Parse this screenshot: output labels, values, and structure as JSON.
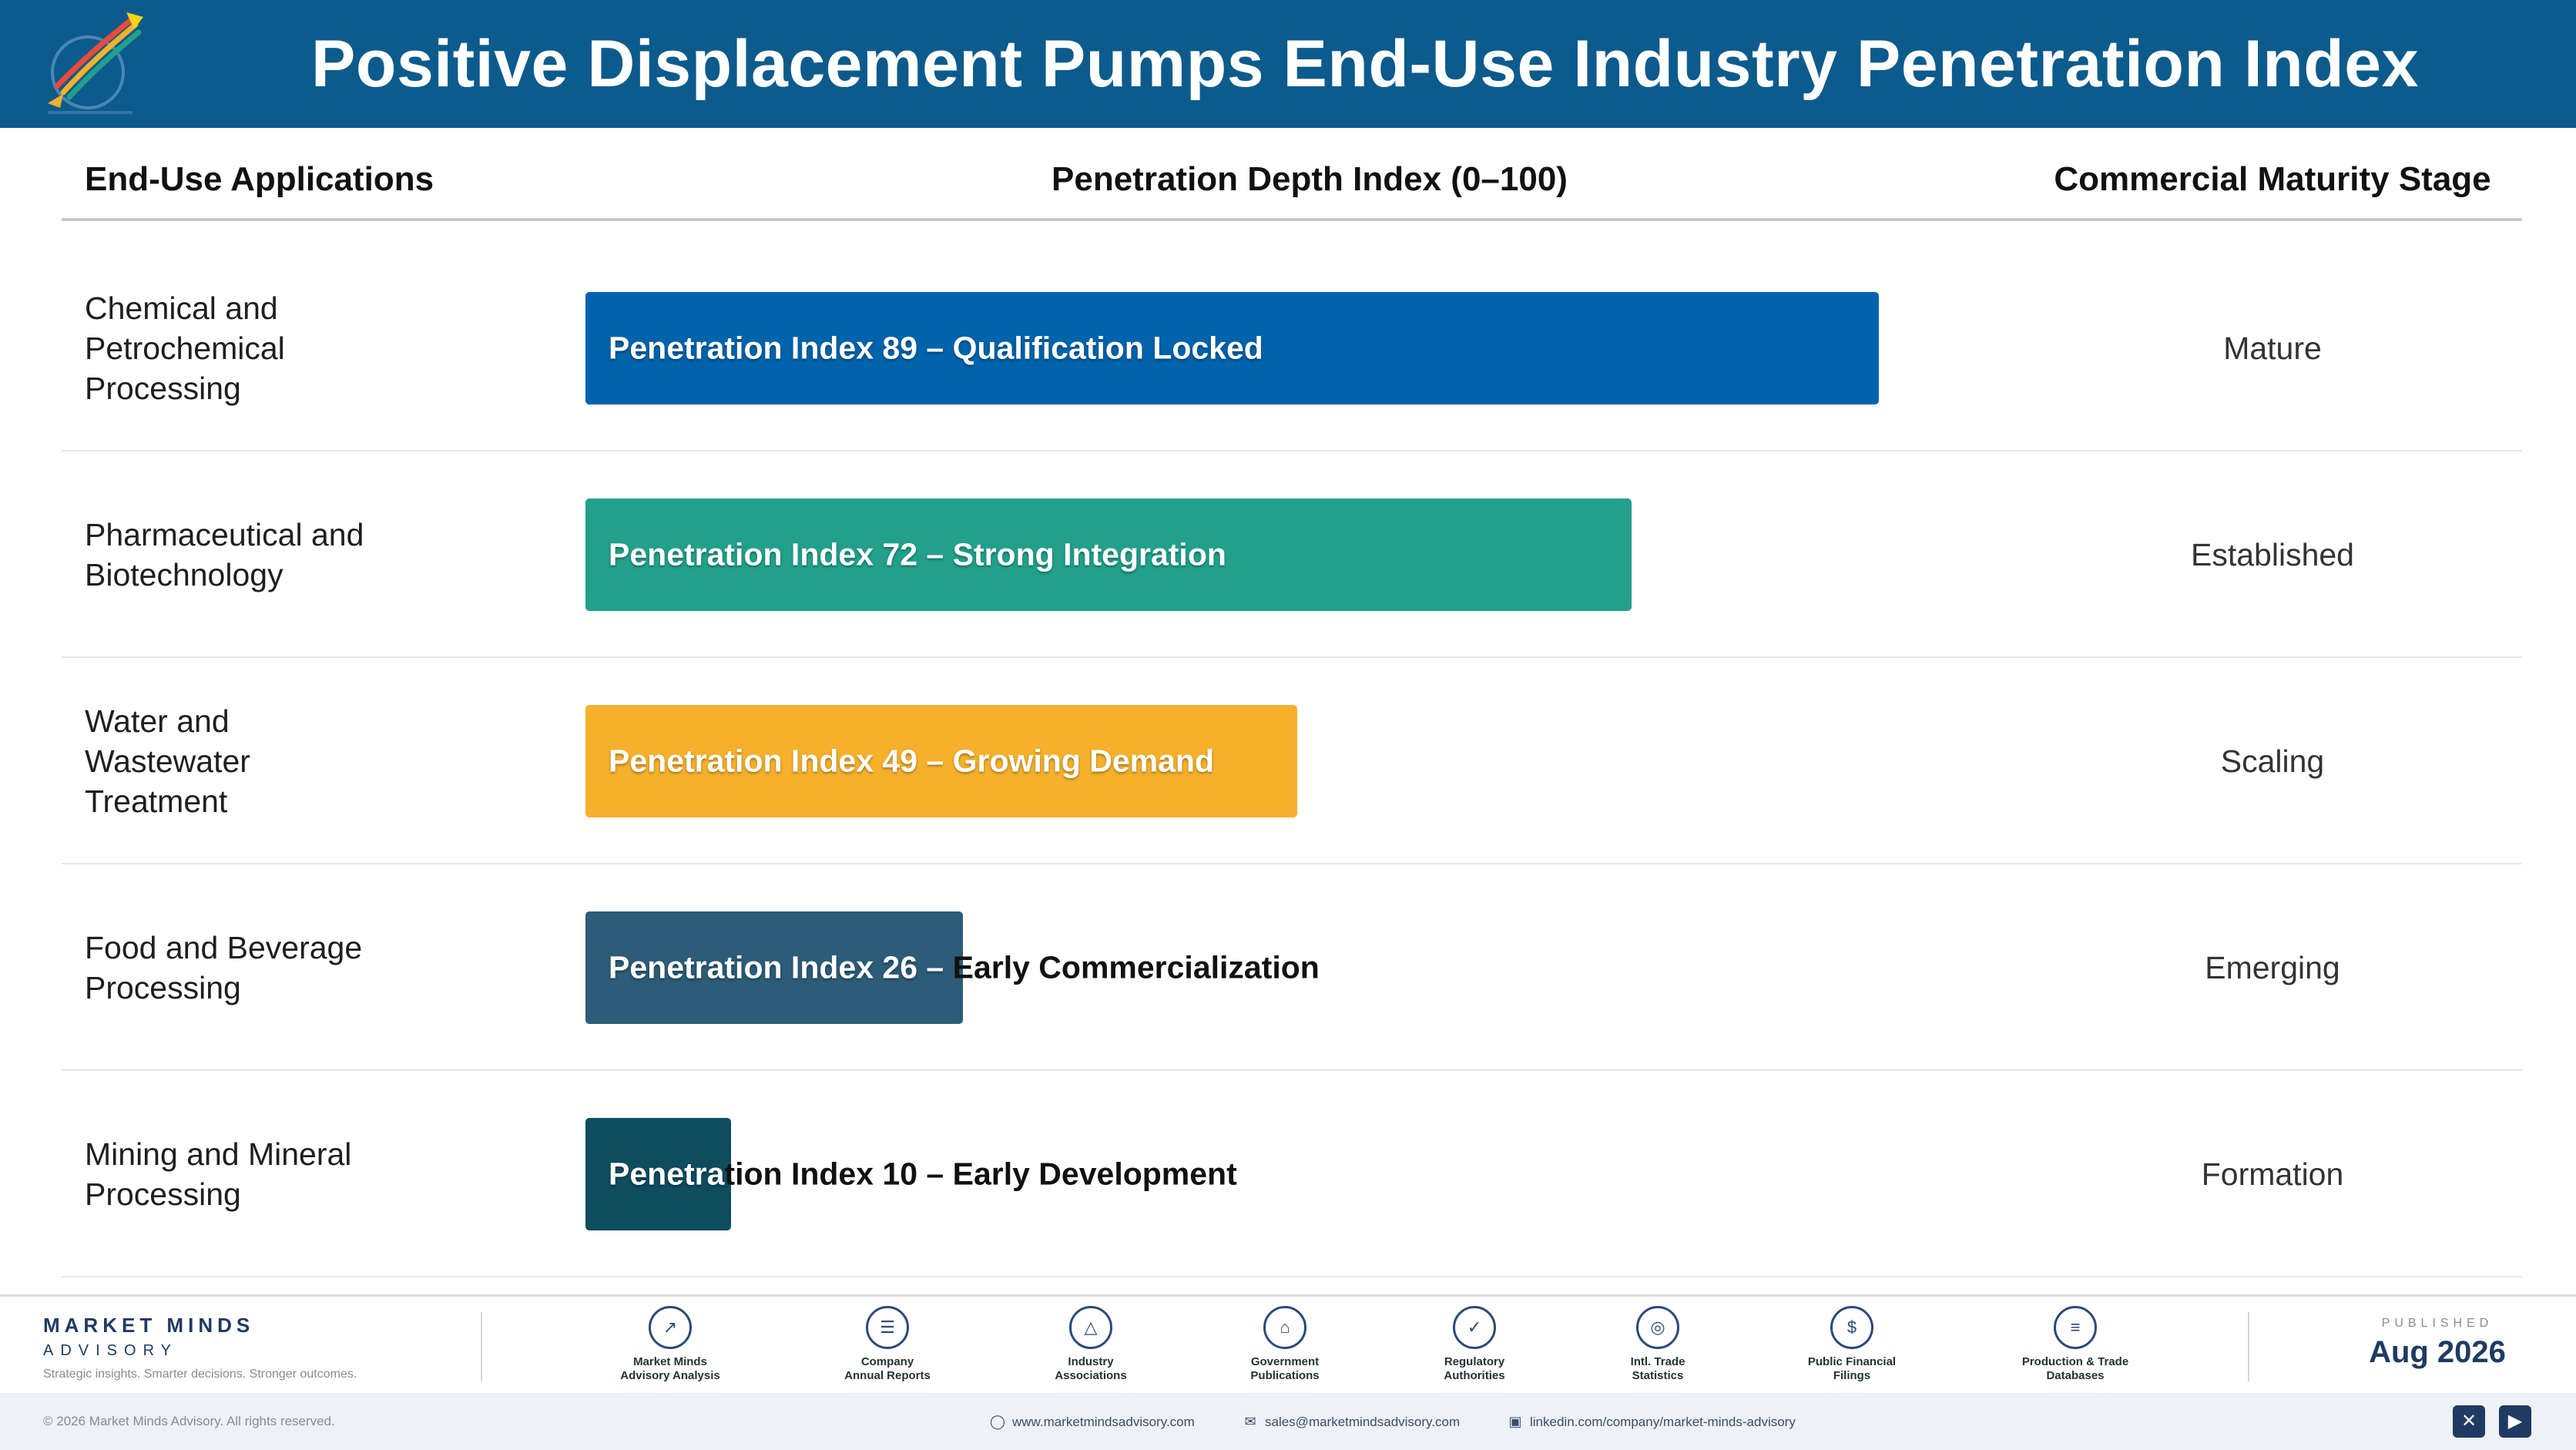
{
  "header": {
    "title": "Positive Displacement Pumps End-Use Industry Penetration Index",
    "background": "#0c5b8c"
  },
  "columns": {
    "applications": "End-Use Applications",
    "index": "Penetration Depth Index (0–100)",
    "stage": "Commercial Maturity Stage"
  },
  "chart_data": {
    "type": "bar",
    "orientation": "horizontal",
    "title": "Positive Displacement Pumps End-Use Industry Penetration Index",
    "xlabel": "Penetration Depth Index (0–100)",
    "xlim": [
      0,
      100
    ],
    "grid": false,
    "categories": [
      "Chemical and Petrochemical Processing",
      "Pharmaceutical and Biotechnology",
      "Water and Wastewater Treatment",
      "Food and Beverage Processing",
      "Mining and Mineral Processing"
    ],
    "values": [
      89,
      72,
      49,
      26,
      10
    ],
    "bar_labels": [
      "Penetration Index 89 – Qualification Locked",
      "Penetration Index 72 – Strong Integration",
      "Penetration Index 49 – Growing Demand",
      "Penetration Index 26 – Early Commercialization",
      "Penetration Index 10 – Early Development"
    ],
    "stages": [
      "Mature",
      "Established",
      "Scaling",
      "Emerging",
      "Formation"
    ],
    "colors": [
      "#0063ab",
      "#22a08b",
      "#f5b12c",
      "#2c5c78",
      "#0e4c5f"
    ]
  },
  "footer": {
    "brand_name": "MARKET MINDS",
    "brand_sub": "ADVISORY",
    "tagline": "Strategic insights. Smarter decisions. Stronger outcomes.",
    "sources": [
      {
        "icon": "trend-line-icon",
        "line1": "Market Minds",
        "line2": "Advisory Analysis"
      },
      {
        "icon": "document-icon",
        "line1": "Company",
        "line2": "Annual Reports"
      },
      {
        "icon": "network-icon",
        "line1": "Industry",
        "line2": "Associations"
      },
      {
        "icon": "government-building-icon",
        "line1": "Government",
        "line2": "Publications"
      },
      {
        "icon": "shield-check-icon",
        "line1": "Regulatory",
        "line2": "Authorities"
      },
      {
        "icon": "globe-icon",
        "line1": "Intl. Trade",
        "line2": "Statistics"
      },
      {
        "icon": "dollar-coin-icon",
        "line1": "Public Financial",
        "line2": "Filings"
      },
      {
        "icon": "database-icon",
        "line1": "Production & Trade",
        "line2": "Databases"
      }
    ],
    "published_label": "PUBLISHED",
    "published_date": "Aug 2026",
    "copyright": "© 2026 Market Minds Advisory. All rights reserved.",
    "website": "www.marketmindsadvisory.com",
    "email": "sales@marketmindsadvisory.com",
    "linkedin": "linkedin.com/company/market-minds-advisory"
  }
}
